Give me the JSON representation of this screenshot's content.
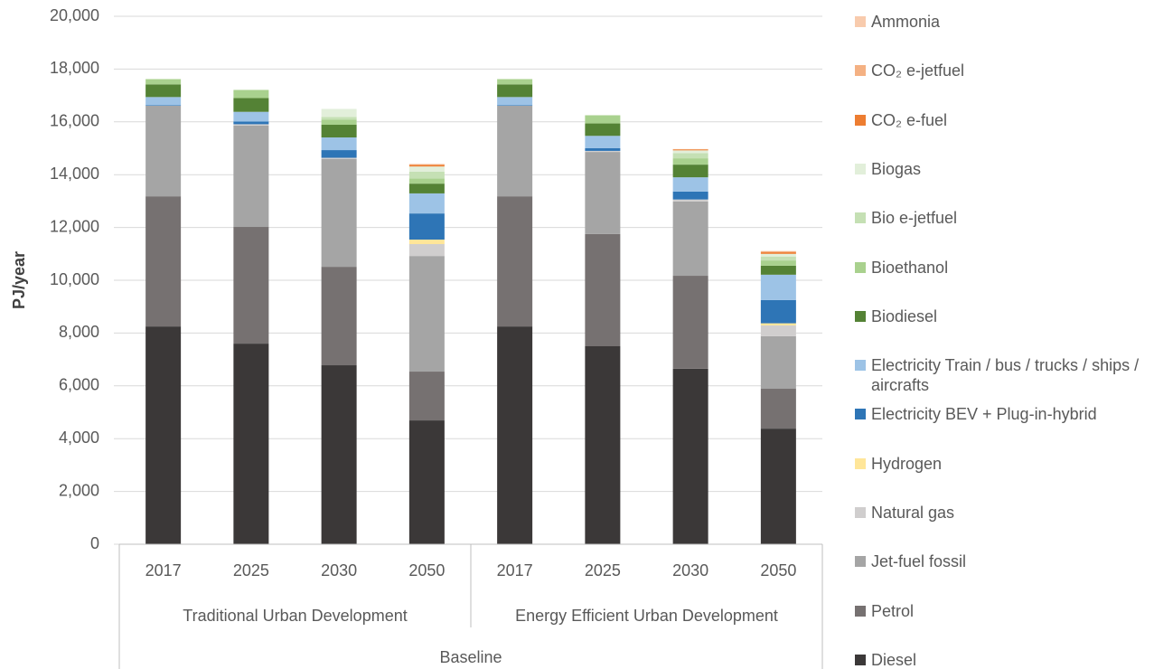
{
  "chart_data": {
    "type": "stacked_bar",
    "y_label": "PJ/year",
    "categories": [
      "2017",
      "2025",
      "2030",
      "2050",
      "2017",
      "2025",
      "2030",
      "2050"
    ],
    "category_groups": [
      {
        "label": "Traditional Urban Development",
        "count": 4
      },
      {
        "label": "Energy Efficient Urban Development",
        "count": 4
      }
    ],
    "outer_group": {
      "label": "Baseline",
      "count": 8
    },
    "ylim": [
      0,
      20000
    ],
    "yticks": [
      0,
      {
        "value": 2000,
        "label": "2,000"
      },
      {
        "value": 4000,
        "label": "4,000"
      },
      {
        "value": 6000,
        "label": "6,000"
      },
      {
        "value": 8000,
        "label": "8,000"
      },
      {
        "value": 10000,
        "label": "10,000"
      },
      {
        "value": 12000,
        "label": "12,000"
      },
      {
        "value": 14000,
        "label": "14,000"
      },
      {
        "value": 16000,
        "label": "16,000"
      },
      {
        "value": 18000,
        "label": "18,000"
      },
      {
        "value": 20000,
        "label": "20,000"
      }
    ],
    "grid": true,
    "legend": "right",
    "series": [
      {
        "name": "Diesel",
        "color": "#3b3838",
        "values": [
          8250,
          7600,
          6780,
          4690,
          8250,
          7500,
          6650,
          4380
        ]
      },
      {
        "name": "Petrol",
        "color": "#767171",
        "values": [
          4930,
          4420,
          3730,
          1850,
          4930,
          4250,
          3520,
          1510
        ]
      },
      {
        "name": "Jet-fuel fossil",
        "color": "#a5a5a5",
        "values": [
          3430,
          3840,
          4080,
          4380,
          3430,
          3110,
          2810,
          1990
        ]
      },
      {
        "name": "Natural gas",
        "color": "#d0cece",
        "values": [
          0,
          50,
          50,
          450,
          0,
          40,
          80,
          410
        ]
      },
      {
        "name": "Hydrogen",
        "color": "#ffe699",
        "values": [
          0,
          0,
          0,
          170,
          0,
          0,
          0,
          80
        ]
      },
      {
        "name": "Electricity BEV + Plug-in-hybrid",
        "color": "#2e75b6",
        "values": [
          20,
          100,
          290,
          990,
          20,
          100,
          300,
          880
        ]
      },
      {
        "name": "Electricity Train / bus / trucks / ships / aircrafts",
        "color": "#9dc3e6",
        "values": [
          310,
          370,
          480,
          760,
          310,
          470,
          540,
          960
        ]
      },
      {
        "name": "Biodiesel",
        "color": "#548235",
        "values": [
          480,
          520,
          480,
          370,
          480,
          470,
          480,
          340
        ]
      },
      {
        "name": "Bioethanol",
        "color": "#a9d18e",
        "values": [
          200,
          310,
          200,
          200,
          200,
          310,
          240,
          200
        ]
      },
      {
        "name": "Bio e-jetfuel",
        "color": "#c5e0b4",
        "values": [
          0,
          0,
          100,
          250,
          0,
          0,
          200,
          150
        ]
      },
      {
        "name": "Biogas",
        "color": "#e2efda",
        "values": [
          0,
          0,
          300,
          200,
          0,
          0,
          100,
          100
        ]
      },
      {
        "name": "CO₂ e-fuel",
        "color": "#ed7d31",
        "values": [
          0,
          0,
          0,
          60,
          0,
          0,
          30,
          60
        ]
      },
      {
        "name": "CO₂ e-jetfuel",
        "color": "#f4b183",
        "values": [
          0,
          0,
          0,
          30,
          0,
          0,
          20,
          40
        ]
      },
      {
        "name": "Ammonia",
        "color": "#f8cbad",
        "values": [
          0,
          0,
          0,
          0,
          0,
          0,
          0,
          10
        ]
      }
    ]
  }
}
